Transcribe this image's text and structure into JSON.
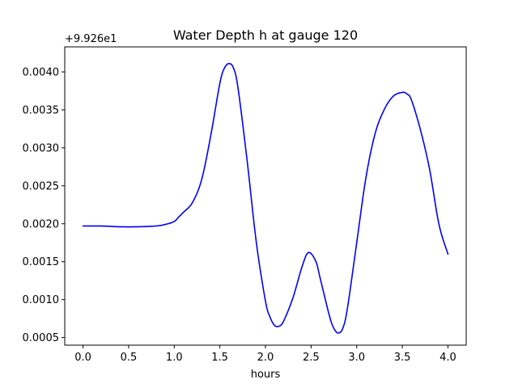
{
  "chart_data": {
    "type": "line",
    "title": "Water Depth h at gauge 120",
    "xlabel": "hours",
    "ylabel": "",
    "y_offset_text": "+9.926e1",
    "xlim": [
      -0.2,
      4.2
    ],
    "ylim": [
      0.0004,
      0.00433
    ],
    "xticks": [
      0.0,
      0.5,
      1.0,
      1.5,
      2.0,
      2.5,
      3.0,
      3.5,
      4.0
    ],
    "xtick_labels": [
      "0.0",
      "0.5",
      "1.0",
      "1.5",
      "2.0",
      "2.5",
      "3.0",
      "3.5",
      "4.0"
    ],
    "yticks": [
      0.0005,
      0.001,
      0.0015,
      0.002,
      0.0025,
      0.003,
      0.0035,
      0.004
    ],
    "ytick_labels": [
      "0.0005",
      "0.0010",
      "0.0015",
      "0.0020",
      "0.0025",
      "0.0030",
      "0.0035",
      "0.0040"
    ],
    "grid": false,
    "line_color": "#0000ff",
    "series": [
      {
        "x": [
          0.0,
          0.2,
          0.4,
          0.6,
          0.8,
          0.9,
          1.0,
          1.05,
          1.1,
          1.2,
          1.3,
          1.4,
          1.5,
          1.55,
          1.6,
          1.65,
          1.7,
          1.8,
          1.9,
          2.0,
          2.05,
          2.1,
          2.15,
          2.2,
          2.3,
          2.4,
          2.47,
          2.55,
          2.6,
          2.7,
          2.75,
          2.8,
          2.85,
          2.9,
          3.0,
          3.1,
          3.2,
          3.3,
          3.4,
          3.5,
          3.55,
          3.6,
          3.7,
          3.8,
          3.9,
          4.0
        ],
        "y": [
          0.00197,
          0.00197,
          0.00196,
          0.00196,
          0.00197,
          0.00199,
          0.00203,
          0.00209,
          0.00215,
          0.00228,
          0.00258,
          0.00316,
          0.00385,
          0.00405,
          0.00411,
          0.00405,
          0.00378,
          0.00282,
          0.00175,
          0.00098,
          0.00077,
          0.00066,
          0.00065,
          0.00072,
          0.00102,
          0.00143,
          0.00162,
          0.00151,
          0.00128,
          0.00079,
          0.00062,
          0.00056,
          0.00063,
          0.0009,
          0.00175,
          0.0026,
          0.00318,
          0.0035,
          0.00368,
          0.00373,
          0.00371,
          0.00363,
          0.00323,
          0.00271,
          0.002,
          0.0016
        ]
      }
    ]
  }
}
